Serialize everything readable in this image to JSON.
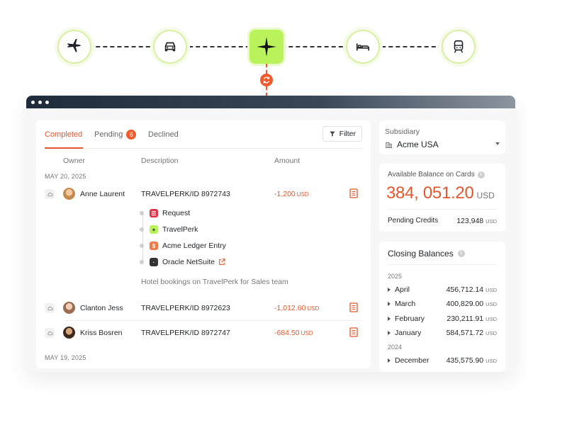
{
  "flow": {
    "nodes": [
      "plane-icon",
      "car-icon",
      "travelperk-logo-icon",
      "bed-icon",
      "train-icon"
    ],
    "accent": "#b9f25a",
    "sync_color": "#f15a2c"
  },
  "tabs": {
    "completed": "Completed",
    "pending": "Pending",
    "pending_count": "6",
    "declined": "Declined",
    "filter": "Filter"
  },
  "columns": {
    "owner": "Owner",
    "description": "Description",
    "amount": "Amount"
  },
  "dates": {
    "d1": "MAY 20, 2025",
    "d2": "MAY 19, 2025"
  },
  "transactions": [
    {
      "owner": "Anne Laurent",
      "description": "TRAVELPERK/ID 8972743",
      "amount": "-1,200",
      "currency": "USD"
    },
    {
      "owner": "Clanton Jess",
      "description": "TRAVELPERK/ID 8972623",
      "amount": "-1,012.60",
      "currency": "USD"
    },
    {
      "owner": "Kriss Bosren",
      "description": "TRAVELPERK/ID 8972747",
      "amount": "-684.50",
      "currency": "USD"
    }
  ],
  "expanded": {
    "steps": [
      "Request",
      "TravelPerk",
      "Acme Ledger Entry",
      "Oracle NetSuite"
    ],
    "note": "Hotel bookings on TravelPerk for Sales team"
  },
  "subsidiary": {
    "label": "Subsidiary",
    "value": "Acme USA"
  },
  "balance": {
    "label": "Available Balance on Cards",
    "value": "384, 051.20",
    "currency": "USD",
    "credits_label": "Pending Credits",
    "credits_value": "123,948",
    "credits_currency": "USD"
  },
  "closing": {
    "title": "Closing Balances",
    "year1": "2025",
    "year2": "2024",
    "rows": [
      {
        "month": "April",
        "value": "456,712.14",
        "currency": "USD"
      },
      {
        "month": "March",
        "value": "400,829.00",
        "currency": "USD"
      },
      {
        "month": "February",
        "value": "230,211.91",
        "currency": "USD"
      },
      {
        "month": "January",
        "value": "584,571.72",
        "currency": "USD"
      },
      {
        "month": "December",
        "value": "435,575.90",
        "currency": "USD"
      }
    ]
  },
  "colors": {
    "accent_orange": "#e4572e",
    "lime": "#b9f25a"
  }
}
